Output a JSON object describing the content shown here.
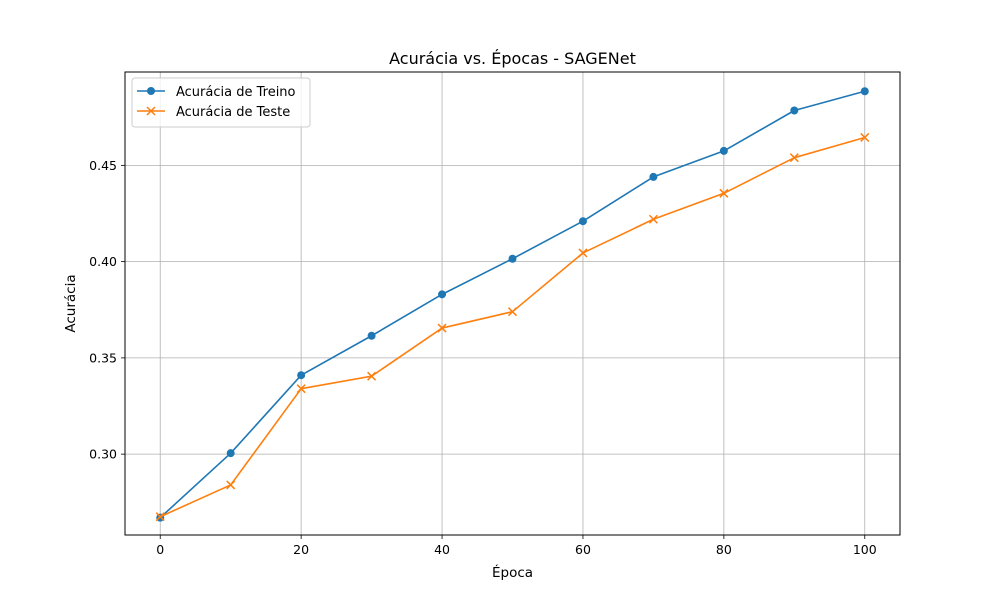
{
  "chart_data": {
    "type": "line",
    "title": "Acurácia vs. Épocas - SAGENet",
    "xlabel": "Época",
    "ylabel": "Acurácia",
    "x": [
      0,
      10,
      20,
      30,
      40,
      50,
      60,
      70,
      80,
      90,
      100
    ],
    "xlim": [
      -5,
      105
    ],
    "ylim": [
      0.258,
      0.4985
    ],
    "x_ticks": [
      0,
      20,
      40,
      60,
      80,
      100
    ],
    "y_ticks": [
      0.3,
      0.35,
      0.4,
      0.45
    ],
    "y_tick_labels": [
      "0.30",
      "0.35",
      "0.40",
      "0.45"
    ],
    "grid": true,
    "legend_position": "top-left",
    "series": [
      {
        "name": "Acurácia de Treino",
        "color": "#1f77b4",
        "marker": "circle",
        "values": [
          0.267,
          0.3005,
          0.341,
          0.3615,
          0.383,
          0.4015,
          0.421,
          0.444,
          0.4575,
          0.4785,
          0.4885
        ]
      },
      {
        "name": "Acurácia de Teste",
        "color": "#ff7f0e",
        "marker": "x",
        "values": [
          0.2675,
          0.284,
          0.334,
          0.3405,
          0.3655,
          0.374,
          0.4045,
          0.422,
          0.4355,
          0.454,
          0.4645
        ]
      }
    ]
  }
}
